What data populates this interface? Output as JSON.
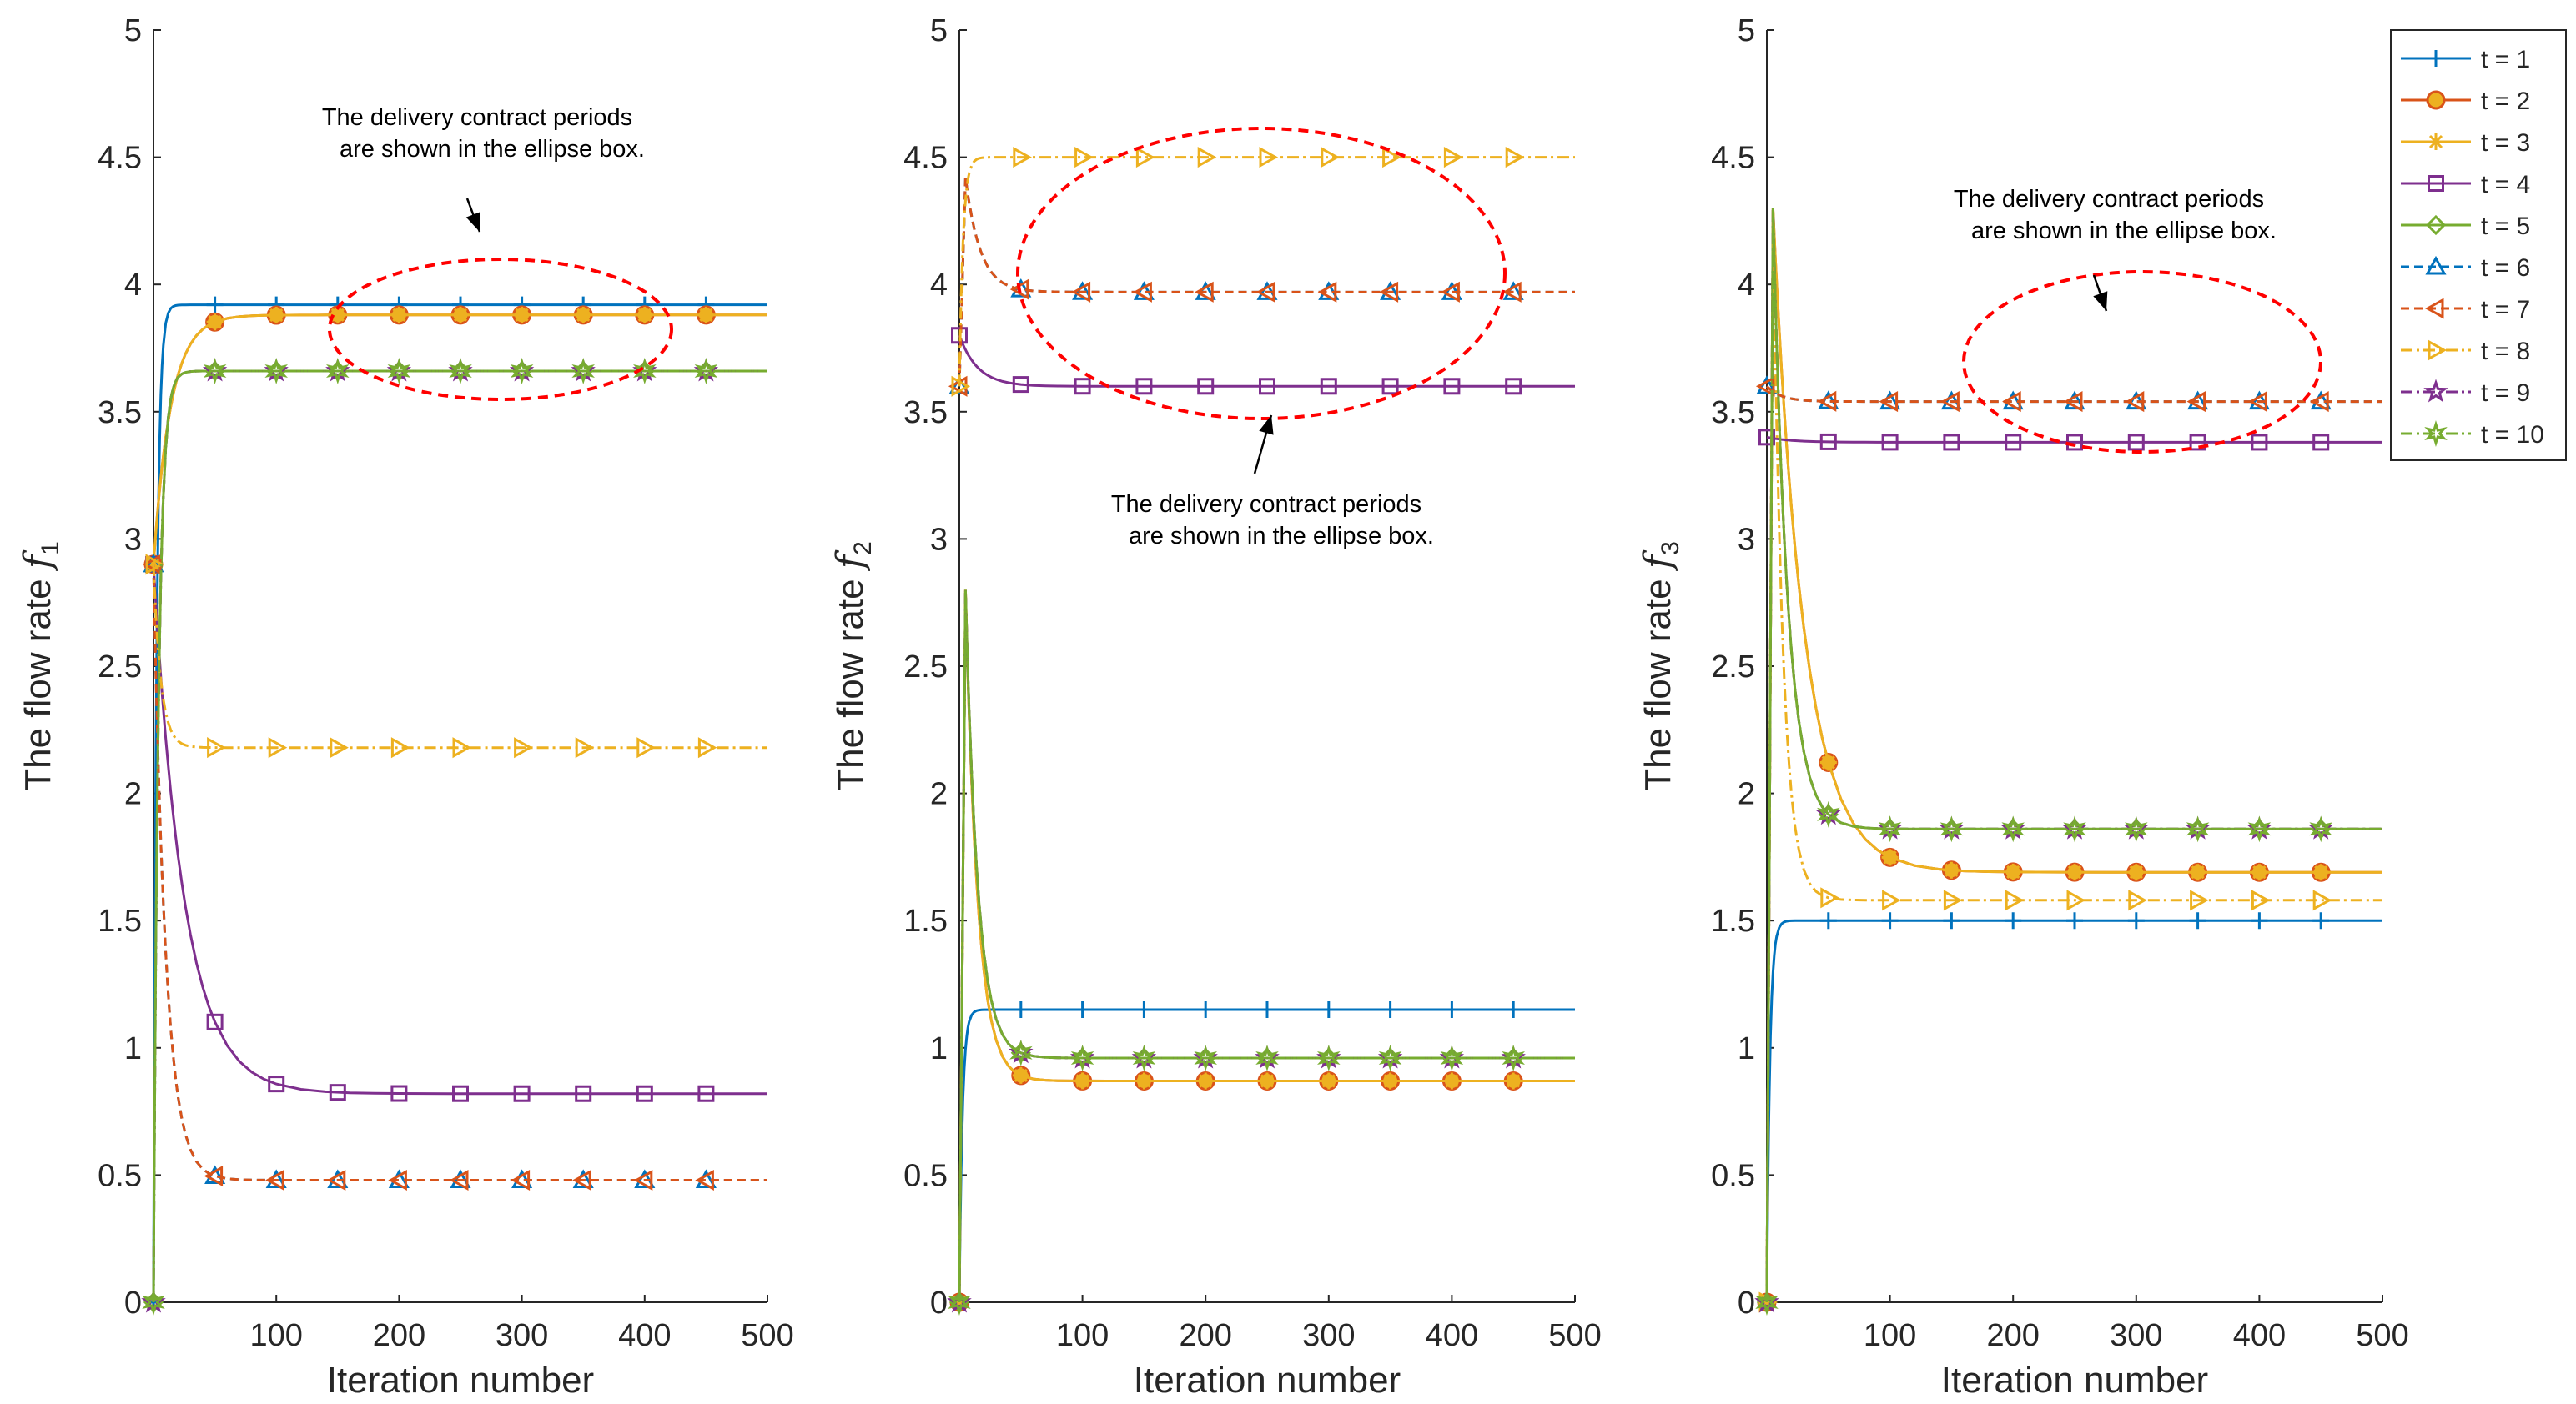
{
  "chart_data": [
    {
      "type": "line",
      "xlabel": "Iteration number",
      "ylabel": "The flow rate",
      "ylabel_symbol": "f",
      "ylabel_sub": "1",
      "xlim": [
        0,
        500
      ],
      "ylim": [
        0,
        5
      ],
      "xticks": [
        100,
        200,
        300,
        400,
        500
      ],
      "yticks": [
        0,
        0.5,
        1,
        1.5,
        2,
        2.5,
        3,
        3.5,
        4,
        4.5,
        5
      ],
      "annotation": [
        "The delivery contract periods",
        "are shown in the ellipse box."
      ],
      "series": [
        {
          "name": "t = 1",
          "start": 0,
          "peak": null,
          "final": 3.92
        },
        {
          "name": "t = 2",
          "start": 2.9,
          "peak": null,
          "final": 3.88
        },
        {
          "name": "t = 3",
          "start": 2.9,
          "peak": null,
          "final": 3.88
        },
        {
          "name": "t = 4",
          "start": 2.9,
          "peak": null,
          "final": 0.82
        },
        {
          "name": "t = 5",
          "start": 0,
          "peak": null,
          "final": 3.66
        },
        {
          "name": "t = 6",
          "start": 2.9,
          "peak": null,
          "final": 0.48
        },
        {
          "name": "t = 7",
          "start": 2.9,
          "peak": null,
          "final": 0.48
        },
        {
          "name": "t = 8",
          "start": 2.9,
          "peak": null,
          "final": 2.18
        },
        {
          "name": "t = 9",
          "start": 0,
          "peak": null,
          "final": 3.66
        },
        {
          "name": "t = 10",
          "start": 0,
          "peak": null,
          "final": 3.66
        }
      ]
    },
    {
      "type": "line",
      "xlabel": "Iteration number",
      "ylabel": "The flow rate",
      "ylabel_symbol": "f",
      "ylabel_sub": "2",
      "xlim": [
        0,
        500
      ],
      "ylim": [
        0,
        5
      ],
      "xticks": [
        100,
        200,
        300,
        400,
        500
      ],
      "yticks": [
        0,
        0.5,
        1,
        1.5,
        2,
        2.5,
        3,
        3.5,
        4,
        4.5,
        5
      ],
      "annotation": [
        "The delivery contract periods",
        "are shown in the ellipse box."
      ],
      "series": [
        {
          "name": "t = 1",
          "start": 0,
          "peak": null,
          "final": 1.15
        },
        {
          "name": "t = 2",
          "start": 0,
          "peak": 2.8,
          "final": 0.87
        },
        {
          "name": "t = 3",
          "start": 0,
          "peak": 2.8,
          "final": 0.87
        },
        {
          "name": "t = 4",
          "start": 3.8,
          "peak": null,
          "final": 3.6
        },
        {
          "name": "t = 5",
          "start": 0,
          "peak": 2.8,
          "final": 0.96
        },
        {
          "name": "t = 6",
          "start": 3.6,
          "peak": 4.42,
          "final": 3.97
        },
        {
          "name": "t = 7",
          "start": 3.6,
          "peak": 4.42,
          "final": 3.97
        },
        {
          "name": "t = 8",
          "start": 3.6,
          "peak": null,
          "final": 4.5
        },
        {
          "name": "t = 9",
          "start": 0,
          "peak": 2.8,
          "final": 0.96
        },
        {
          "name": "t = 10",
          "start": 0,
          "peak": 2.8,
          "final": 0.96
        }
      ]
    },
    {
      "type": "line",
      "xlabel": "Iteration number",
      "ylabel": "The flow rate",
      "ylabel_symbol": "f",
      "ylabel_sub": "3",
      "xlim": [
        0,
        500
      ],
      "ylim": [
        0,
        5
      ],
      "xticks": [
        100,
        200,
        300,
        400,
        500
      ],
      "yticks": [
        0,
        0.5,
        1,
        1.5,
        2,
        2.5,
        3,
        3.5,
        4,
        4.5,
        5
      ],
      "annotation": [
        "The delivery contract periods",
        "are shown in the ellipse box."
      ],
      "series": [
        {
          "name": "t = 1",
          "start": 0,
          "peak": null,
          "final": 1.5
        },
        {
          "name": "t = 2",
          "start": 0,
          "peak": 4.3,
          "final": 1.69
        },
        {
          "name": "t = 3",
          "start": 0,
          "peak": 4.3,
          "final": 1.69
        },
        {
          "name": "t = 4",
          "start": 3.4,
          "peak": null,
          "final": 3.38
        },
        {
          "name": "t = 5",
          "start": 0,
          "peak": 4.3,
          "final": 1.86
        },
        {
          "name": "t = 6",
          "start": 3.6,
          "peak": null,
          "final": 3.54
        },
        {
          "name": "t = 7",
          "start": 3.6,
          "peak": null,
          "final": 3.54
        },
        {
          "name": "t = 8",
          "start": 0,
          "peak": 4.3,
          "final": 1.58
        },
        {
          "name": "t = 9",
          "start": 0,
          "peak": 4.3,
          "final": 1.86
        },
        {
          "name": "t = 10",
          "start": 0,
          "peak": 4.3,
          "final": 1.86
        }
      ]
    }
  ],
  "legend": {
    "entries": [
      "t = 1",
      "t = 2",
      "t = 3",
      "t = 4",
      "t = 5",
      "t = 6",
      "t = 7",
      "t = 8",
      "t = 9",
      "t = 10"
    ],
    "colors": [
      "#0072BD",
      "#D95319",
      "#EDB120",
      "#7E2F8E",
      "#77AC30",
      "#0072BD",
      "#D95319",
      "#EDB120",
      "#7E2F8E",
      "#77AC30"
    ],
    "markers": [
      "plus-icon",
      "circle-icon",
      "asterisk-icon",
      "square-icon",
      "diamond-icon",
      "triangle-up-icon",
      "triangle-left-icon",
      "triangle-right-icon",
      "pentagram-icon",
      "hexagram-icon"
    ]
  }
}
